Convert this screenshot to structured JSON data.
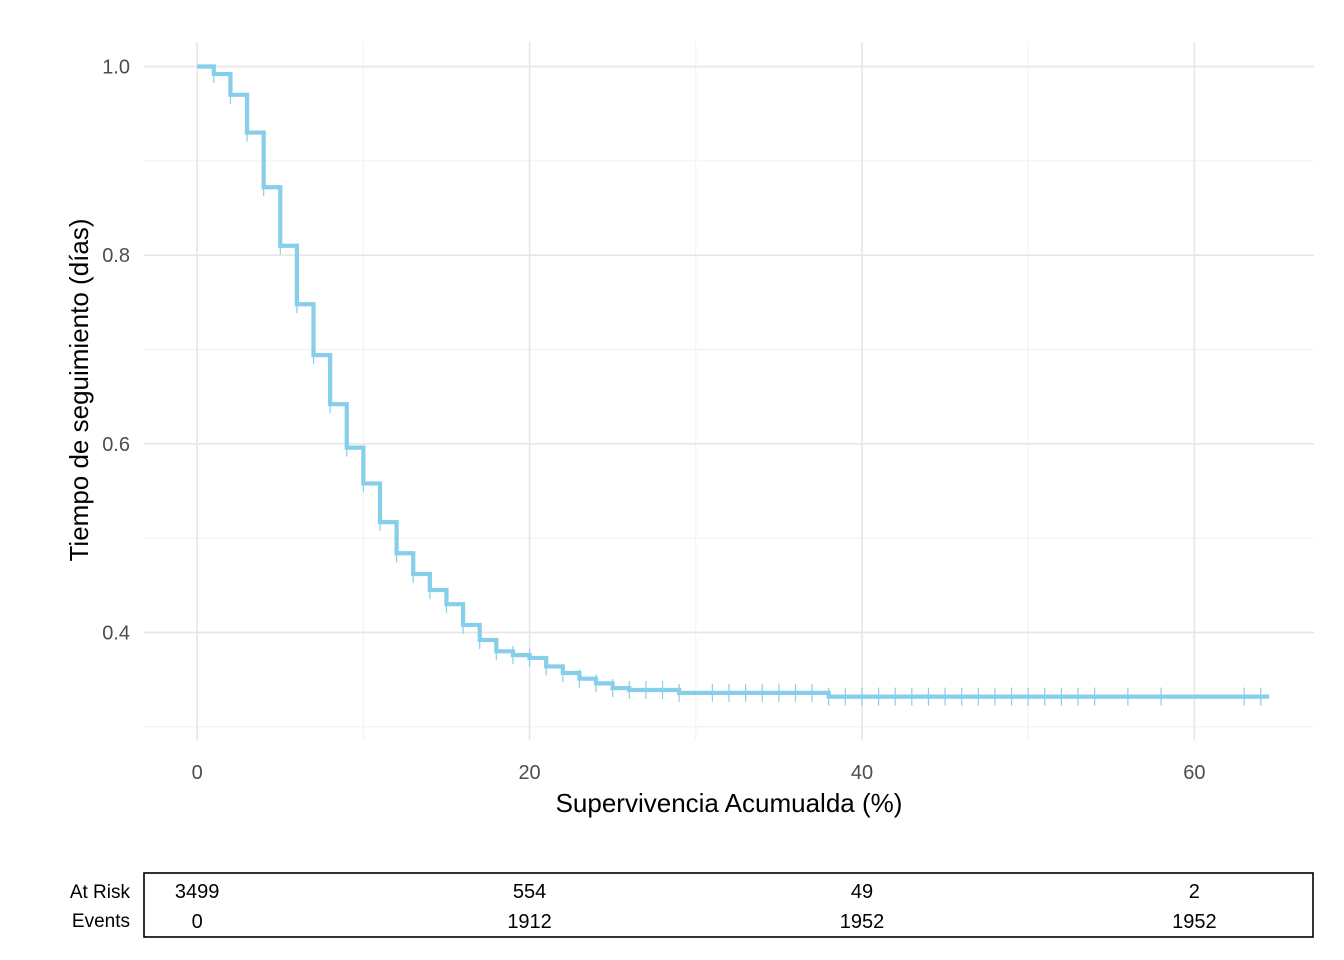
{
  "chart_data": {
    "type": "line",
    "xlabel": "Supervivencia Acumualda (%)",
    "ylabel": "Tiempo de seguimiento (días)",
    "xlim": [
      -3.2,
      67.2
    ],
    "ylim": [
      0.286,
      1.026
    ],
    "x_ticks": [
      0,
      20,
      40,
      60
    ],
    "x_tick_labels": [
      "0",
      "20",
      "40",
      "60"
    ],
    "y_ticks": [
      0.4,
      0.6,
      0.8,
      1.0
    ],
    "y_tick_labels": [
      "0.4",
      "0.6",
      "0.8",
      "1.0"
    ],
    "grid": true,
    "line_color": "#87ceeb",
    "series": [
      {
        "steps": [
          [
            0,
            1.0
          ],
          [
            1,
            0.992
          ],
          [
            2,
            0.97
          ],
          [
            3,
            0.93
          ],
          [
            4,
            0.872
          ],
          [
            5,
            0.81
          ],
          [
            6,
            0.748
          ],
          [
            7,
            0.694
          ],
          [
            8,
            0.642
          ],
          [
            9,
            0.596
          ],
          [
            10,
            0.558
          ],
          [
            11,
            0.517
          ],
          [
            12,
            0.484
          ],
          [
            13,
            0.462
          ],
          [
            14,
            0.445
          ],
          [
            15,
            0.43
          ],
          [
            16,
            0.408
          ],
          [
            17,
            0.392
          ],
          [
            18,
            0.38
          ],
          [
            19,
            0.376
          ],
          [
            20,
            0.373
          ],
          [
            21,
            0.364
          ],
          [
            22,
            0.357
          ],
          [
            23,
            0.351
          ],
          [
            24,
            0.346
          ],
          [
            25,
            0.341
          ],
          [
            26,
            0.339
          ],
          [
            29,
            0.336
          ],
          [
            38,
            0.332
          ],
          [
            64.5,
            0.332
          ]
        ],
        "censor_times": [
          1,
          2,
          3,
          4,
          5,
          6,
          7,
          8,
          9,
          10,
          11,
          12,
          13,
          14,
          15,
          16,
          17,
          18,
          19,
          20,
          21,
          22,
          23,
          24,
          25,
          26,
          27,
          28,
          29,
          31,
          32,
          33,
          34,
          35,
          36,
          37,
          38,
          39,
          40,
          41,
          42,
          43,
          44,
          45,
          46,
          47,
          48,
          49,
          50,
          51,
          52,
          53,
          54,
          56,
          58,
          63,
          64
        ]
      }
    ],
    "risk_table": {
      "row_labels": [
        "At Risk",
        "Events"
      ],
      "times": [
        0,
        20,
        40,
        60
      ],
      "at_risk": [
        "3499",
        "554",
        "49",
        "2"
      ],
      "events": [
        "0",
        "1912",
        "1952",
        "1952"
      ]
    }
  }
}
